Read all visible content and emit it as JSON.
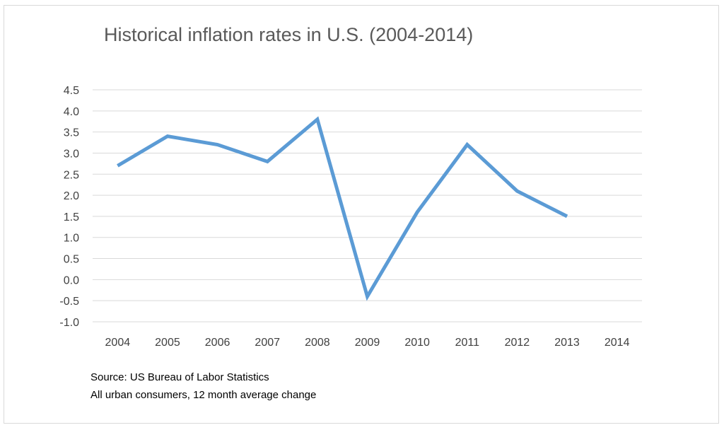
{
  "chart_data": {
    "type": "line",
    "title": "Historical inflation rates in U.S. (2004-2014)",
    "categories": [
      "2004",
      "2005",
      "2006",
      "2007",
      "2008",
      "2009",
      "2010",
      "2011",
      "2012",
      "2013",
      "2014"
    ],
    "series": [
      {
        "values": [
          2.7,
          3.4,
          3.2,
          2.8,
          3.8,
          -0.4,
          1.6,
          3.2,
          2.1,
          1.5,
          null
        ],
        "color": "#5b9bd5"
      }
    ],
    "ylim": [
      -1.0,
      4.5
    ],
    "yticks": [
      "4.5",
      "4.0",
      "3.5",
      "3.0",
      "2.5",
      "2.0",
      "1.5",
      "1.0",
      "0.5",
      "0.0",
      "-0.5",
      "-1.0"
    ],
    "ytick_values": [
      4.5,
      4.0,
      3.5,
      3.0,
      2.5,
      2.0,
      1.5,
      1.0,
      0.5,
      0.0,
      -0.5,
      -1.0
    ],
    "grid": true,
    "gridline_color": "#d9d9d9"
  },
  "notes": {
    "source": "Source: US Bureau of Labor Statistics",
    "detail": "All urban consumers, 12 month average change"
  }
}
